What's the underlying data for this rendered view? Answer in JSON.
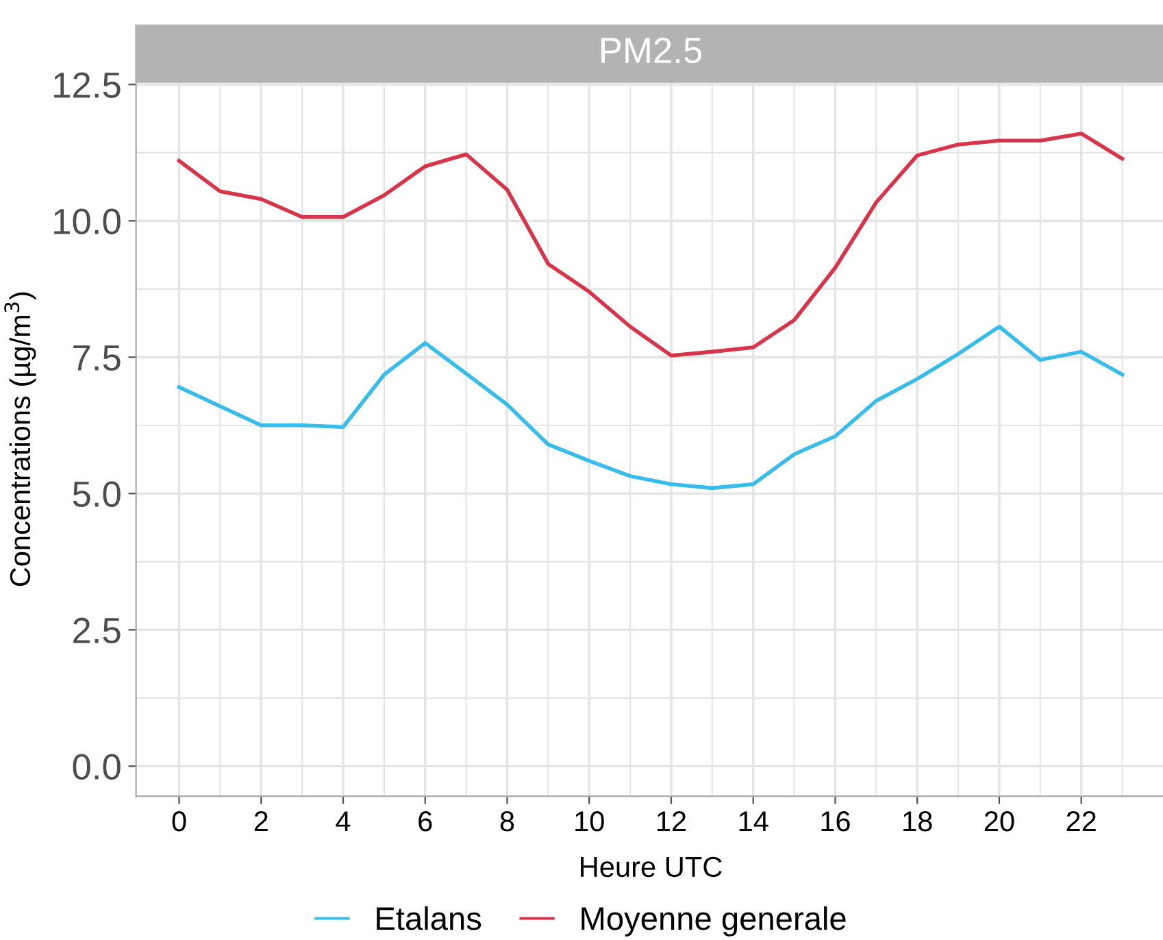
{
  "chart_data": {
    "type": "line",
    "title": "PM2.5",
    "xlabel": "Heure UTC",
    "ylabel": "Concentrations (µg/m$^{3}$)",
    "x": [
      0,
      1,
      2,
      3,
      4,
      5,
      6,
      7,
      8,
      9,
      10,
      11,
      12,
      13,
      14,
      15,
      16,
      17,
      18,
      19,
      20,
      21,
      22,
      23
    ],
    "series": [
      {
        "name": "Etalans",
        "color": "#38bdea",
        "values": [
          6.95,
          6.6,
          6.25,
          6.25,
          6.22,
          7.18,
          7.76,
          7.2,
          6.63,
          5.9,
          5.6,
          5.32,
          5.17,
          5.1,
          5.17,
          5.72,
          6.05,
          6.7,
          7.1,
          7.56,
          8.06,
          7.45,
          7.6,
          7.18
        ]
      },
      {
        "name": "Moyenne generale",
        "color": "#d7354a",
        "values": [
          11.1,
          10.54,
          10.4,
          10.07,
          10.07,
          10.47,
          11.0,
          11.22,
          10.57,
          9.21,
          8.7,
          8.06,
          7.53,
          7.6,
          7.68,
          8.18,
          9.14,
          10.34,
          11.2,
          11.4,
          11.47,
          11.47,
          11.6,
          11.14
        ]
      }
    ],
    "xlim": [
      -1.05,
      24.05
    ],
    "xticks": [
      0,
      2,
      4,
      6,
      8,
      10,
      12,
      14,
      16,
      18,
      20,
      22
    ],
    "ylim": [
      -0.55,
      12.55
    ],
    "yticks": [
      {
        "value": 0,
        "label": "0.0"
      },
      {
        "value": 2.5,
        "label": "2.5"
      },
      {
        "value": 5,
        "label": "5.0"
      },
      {
        "value": 7.5,
        "label": "7.5"
      },
      {
        "value": 10,
        "label": "10.0"
      },
      {
        "value": 12.5,
        "label": "12.5"
      }
    ],
    "grid": true,
    "legend": "bottom",
    "marker": "none",
    "line_style": "solid"
  }
}
